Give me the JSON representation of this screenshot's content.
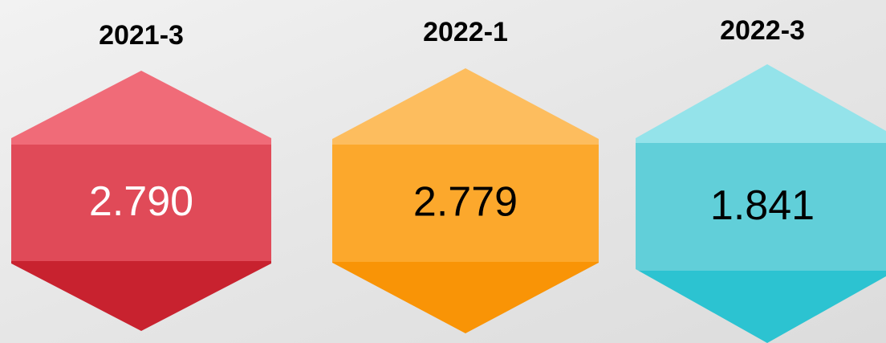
{
  "items": [
    {
      "label": "2021-3",
      "value": "2.790"
    },
    {
      "label": "2022-1",
      "value": "2.779"
    },
    {
      "label": "2022-3",
      "value": "1.841"
    }
  ]
}
